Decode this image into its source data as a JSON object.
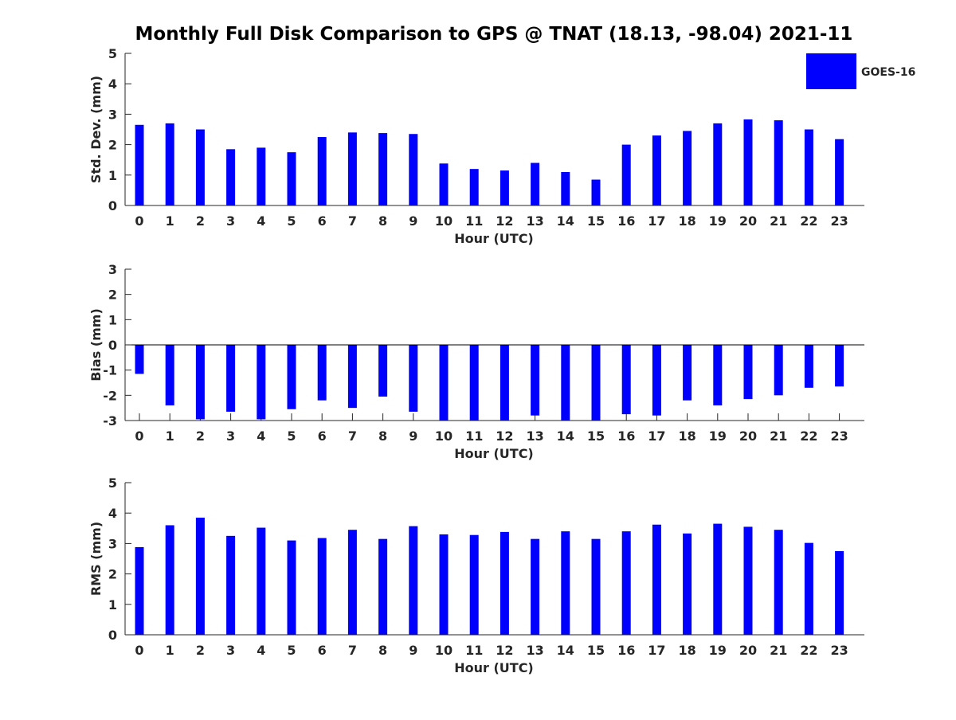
{
  "title": "Monthly Full Disk Comparison to GPS @ TNAT (18.13, -98.04) 2021-11",
  "legend": {
    "label": "GOES-16",
    "color": "#0000ff",
    "placement": "top-right"
  },
  "chart_data": [
    {
      "type": "bar",
      "xlabel": "Hour (UTC)",
      "ylabel": "Std. Dev. (mm)",
      "ylim": [
        0,
        5
      ],
      "yticks": [
        0,
        1,
        2,
        3,
        4,
        5
      ],
      "categories": [
        0,
        1,
        2,
        3,
        4,
        5,
        6,
        7,
        8,
        9,
        10,
        11,
        12,
        13,
        14,
        15,
        16,
        17,
        18,
        19,
        20,
        21,
        22,
        23
      ],
      "series": [
        {
          "name": "GOES-16",
          "color": "#0000ff",
          "values": [
            2.65,
            2.7,
            2.5,
            1.85,
            1.9,
            1.75,
            2.25,
            2.4,
            2.38,
            2.35,
            1.38,
            1.2,
            1.15,
            1.4,
            1.1,
            0.85,
            2.0,
            2.3,
            2.45,
            2.7,
            2.83,
            2.8,
            2.5,
            2.18
          ]
        }
      ],
      "grid": false
    },
    {
      "type": "bar",
      "xlabel": "Hour (UTC)",
      "ylabel": "Bias (mm)",
      "ylim": [
        -3,
        3
      ],
      "yticks": [
        -3,
        -2,
        -1,
        0,
        1,
        2,
        3
      ],
      "categories": [
        0,
        1,
        2,
        3,
        4,
        5,
        6,
        7,
        8,
        9,
        10,
        11,
        12,
        13,
        14,
        15,
        16,
        17,
        18,
        19,
        20,
        21,
        22,
        23
      ],
      "series": [
        {
          "name": "GOES-16",
          "color": "#0000ff",
          "values": [
            -1.15,
            -2.4,
            -2.95,
            -2.65,
            -2.95,
            -2.55,
            -2.2,
            -2.5,
            -2.05,
            -2.65,
            -3.0,
            -3.0,
            -3.0,
            -2.8,
            -3.0,
            -3.0,
            -2.75,
            -2.8,
            -2.2,
            -2.4,
            -2.15,
            -2.0,
            -1.7,
            -1.65
          ]
        }
      ],
      "grid": false
    },
    {
      "type": "bar",
      "xlabel": "Hour (UTC)",
      "ylabel": "RMS (mm)",
      "ylim": [
        0,
        5
      ],
      "yticks": [
        0,
        1,
        2,
        3,
        4,
        5
      ],
      "categories": [
        0,
        1,
        2,
        3,
        4,
        5,
        6,
        7,
        8,
        9,
        10,
        11,
        12,
        13,
        14,
        15,
        16,
        17,
        18,
        19,
        20,
        21,
        22,
        23
      ],
      "series": [
        {
          "name": "GOES-16",
          "color": "#0000ff",
          "values": [
            2.88,
            3.6,
            3.85,
            3.25,
            3.52,
            3.1,
            3.18,
            3.45,
            3.15,
            3.57,
            3.3,
            3.28,
            3.38,
            3.15,
            3.4,
            3.15,
            3.4,
            3.62,
            3.33,
            3.65,
            3.55,
            3.45,
            3.02,
            2.75
          ]
        }
      ],
      "grid": false
    }
  ]
}
